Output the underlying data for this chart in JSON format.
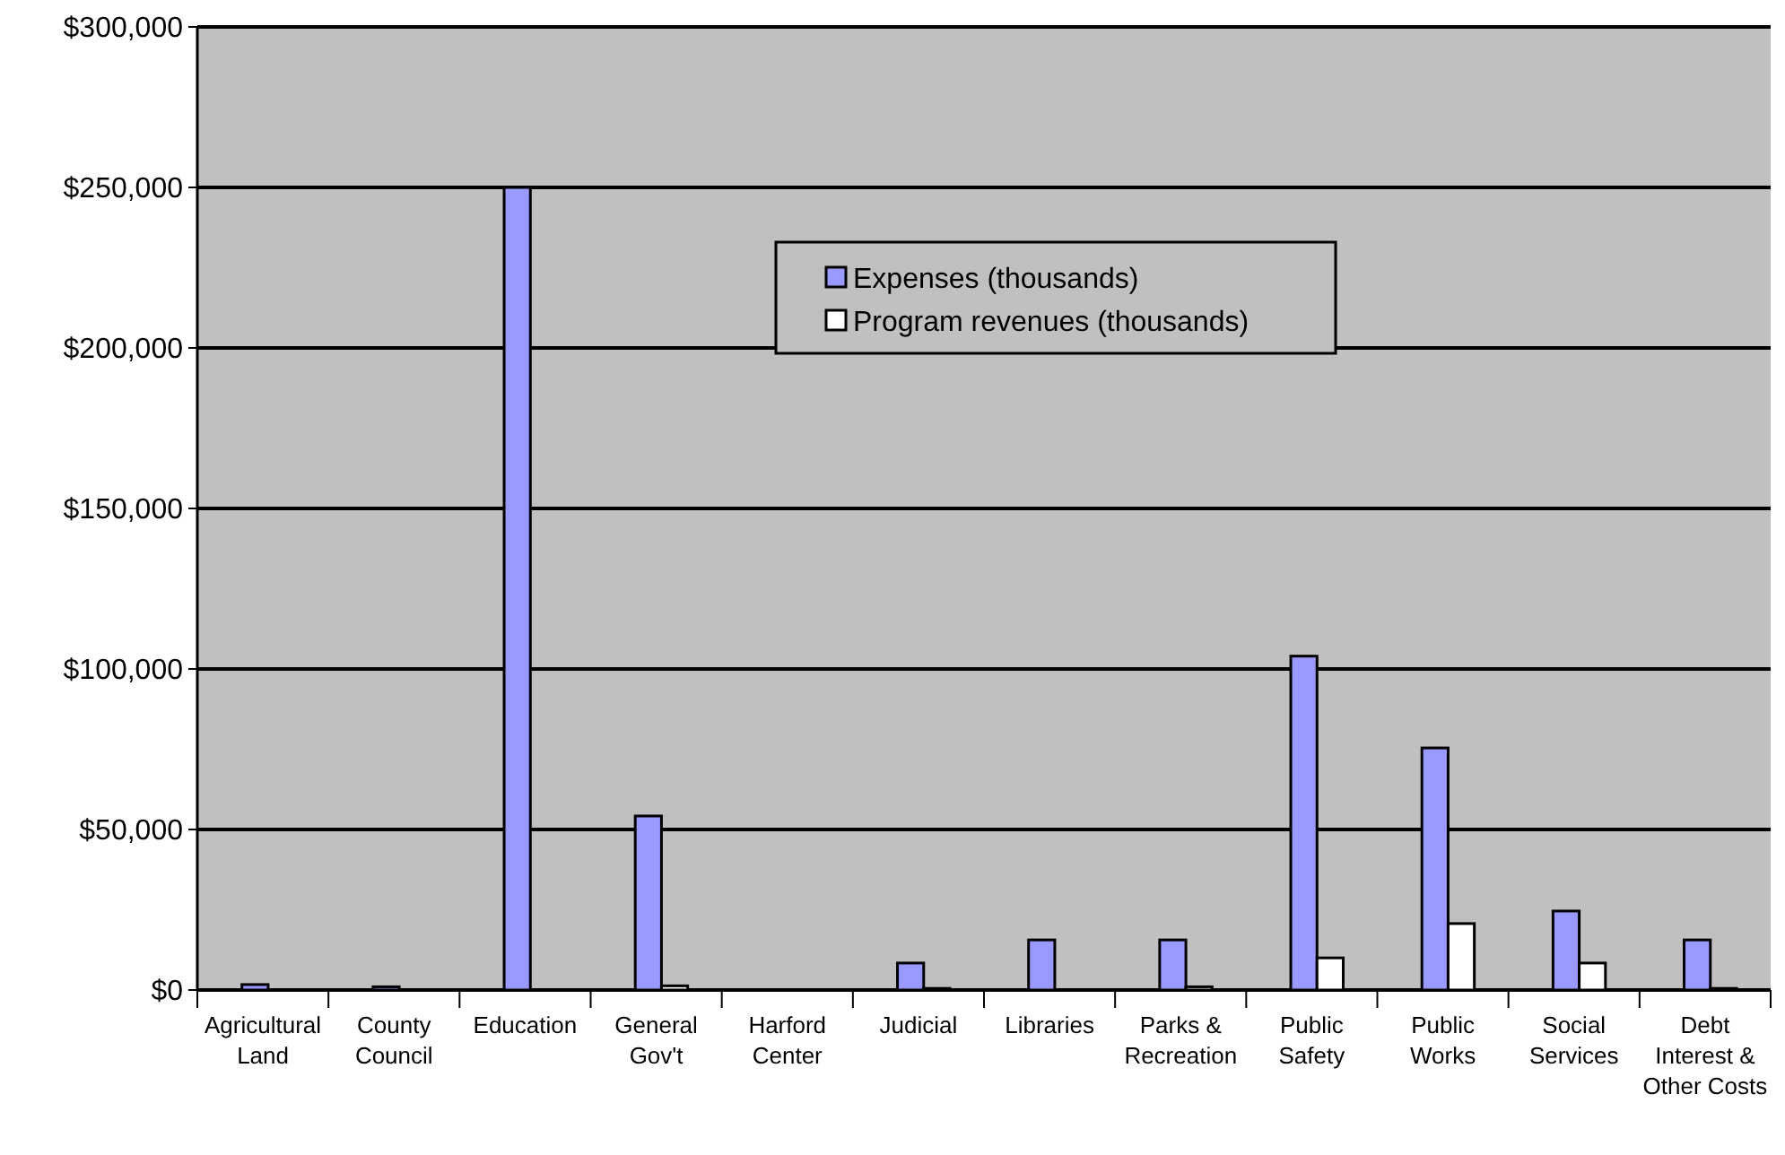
{
  "chart_data": {
    "type": "bar",
    "categories": [
      "Agricultural Land",
      "County Council",
      "Education",
      "General Gov't",
      "Harford Center",
      "Judicial",
      "Libraries",
      "Parks & Recreation",
      "Public Safety",
      "Public Works",
      "Social Services",
      "Debt Interest & Other Costs"
    ],
    "series": [
      {
        "name": "Expenses (thousands)",
        "color": "#9999ff",
        "values": [
          1700,
          1000,
          250000,
          54200,
          null,
          8400,
          15600,
          15600,
          104000,
          75400,
          24600,
          15600
        ]
      },
      {
        "name": "Program revenues (thousands)",
        "color": "#ffffff",
        "values": [
          0,
          0,
          0,
          1300,
          0,
          500,
          0,
          1000,
          10000,
          20700,
          8400,
          500
        ]
      }
    ],
    "ylim": [
      0,
      300000
    ],
    "yticks": [
      {
        "value": 0,
        "label": "$0"
      },
      {
        "value": 50000,
        "label": "$50,000"
      },
      {
        "value": 100000,
        "label": "$100,000"
      },
      {
        "value": 150000,
        "label": "$150,000"
      },
      {
        "value": 200000,
        "label": "$200,000"
      },
      {
        "value": 250000,
        "label": "$250,000"
      },
      {
        "value": 300000,
        "label": "$300,000"
      }
    ],
    "grid": "y",
    "legend": "top"
  }
}
